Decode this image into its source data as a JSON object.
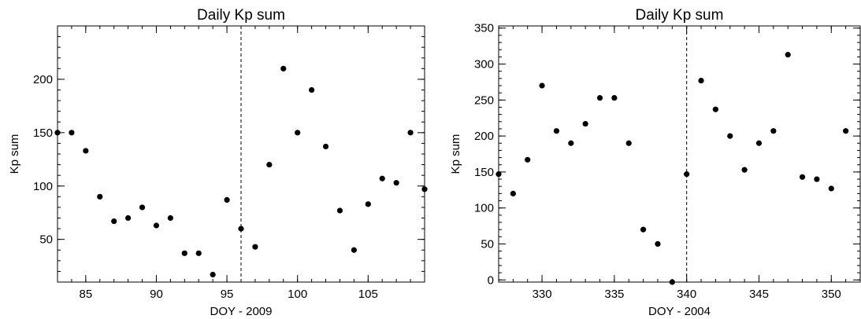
{
  "chart_data": [
    {
      "type": "scatter",
      "title": "Daily Kp sum",
      "xlabel": "DOY - 2009",
      "ylabel": "Kp sum",
      "xlim": [
        83,
        109
      ],
      "ylim": [
        10,
        250
      ],
      "xticks": [
        85,
        90,
        95,
        100,
        105
      ],
      "yticks": [
        50,
        100,
        150,
        200
      ],
      "x_minor_step": 1,
      "y_minor_step": 10,
      "vline": 96,
      "grid": false,
      "x": [
        83,
        84,
        85,
        86,
        87,
        88,
        89,
        90,
        91,
        92,
        93,
        94,
        95,
        96,
        97,
        98,
        99,
        100,
        101,
        102,
        103,
        104,
        105,
        106,
        107,
        108,
        109
      ],
      "y": [
        150,
        150,
        133,
        90,
        67,
        70,
        80,
        63,
        70,
        37,
        37,
        17,
        87,
        60,
        43,
        120,
        210,
        150,
        190,
        137,
        77,
        40,
        83,
        107,
        103,
        150,
        97
      ]
    },
    {
      "type": "scatter",
      "title": "Daily Kp sum",
      "xlabel": "DOY - 2004",
      "ylabel": "Kp sum",
      "xlim": [
        327,
        352
      ],
      "ylim": [
        -3,
        353
      ],
      "xticks": [
        330,
        335,
        340,
        345,
        350
      ],
      "yticks": [
        0,
        50,
        100,
        150,
        200,
        250,
        300,
        350
      ],
      "x_minor_step": 1,
      "y_minor_step": 10,
      "vline": 340,
      "grid": false,
      "x": [
        327,
        328,
        329,
        330,
        331,
        332,
        333,
        334,
        335,
        336,
        337,
        338,
        339,
        340,
        341,
        342,
        343,
        344,
        345,
        346,
        347,
        348,
        349,
        350,
        351
      ],
      "y": [
        147,
        120,
        167,
        270,
        207,
        190,
        217,
        253,
        253,
        190,
        70,
        50,
        -3,
        147,
        277,
        237,
        200,
        153,
        190,
        207,
        313,
        143,
        140,
        127,
        207
      ]
    }
  ]
}
